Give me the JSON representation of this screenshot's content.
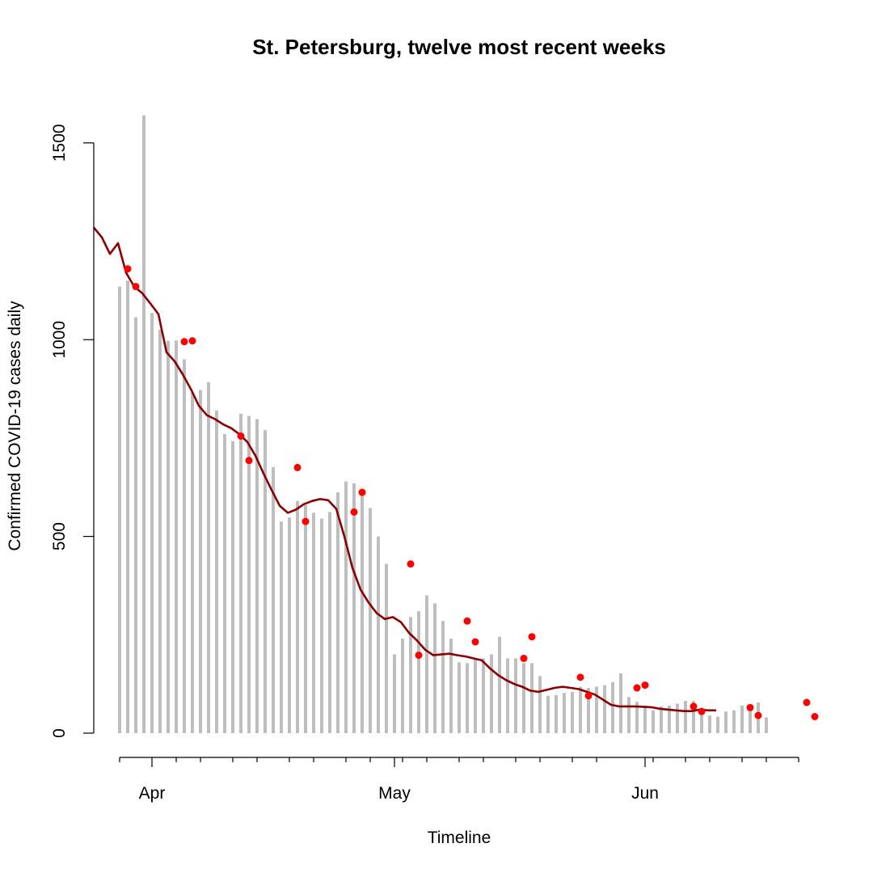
{
  "chart_data": {
    "type": "bar",
    "title": "St. Petersburg, twelve most recent weeks",
    "xlabel": "Timeline",
    "ylabel": "Confirmed COVID-19 cases daily",
    "ylim": [
      0,
      1600
    ],
    "y_ticks": [
      0,
      500,
      1000,
      1500
    ],
    "x_month_ticks": [
      {
        "label": "Apr",
        "day": 4
      },
      {
        "label": "May",
        "day": 34
      },
      {
        "label": "Jun",
        "day": 65
      }
    ],
    "x_minor_tick_days": [
      0,
      7,
      10,
      14,
      17,
      21,
      24,
      28,
      31,
      35,
      38,
      42,
      45,
      49,
      52,
      56,
      59,
      66,
      70,
      73,
      77,
      80,
      84
    ],
    "grid": false,
    "colors": {
      "bars": "#bebebe",
      "trend_line": "#8b0000",
      "points": "#ff0000",
      "axis": "#000000"
    },
    "series": [
      {
        "kind": "bar",
        "values": [
          1135,
          1150,
          1057,
          1570,
          1068,
          1025,
          997,
          998,
          950,
          865,
          872,
          892,
          820,
          760,
          742,
          812,
          806,
          798,
          770,
          676,
          538,
          548,
          590,
          580,
          560,
          545,
          562,
          612,
          640,
          635,
          618,
          572,
          500,
          430,
          200,
          240,
          295,
          310,
          350,
          330,
          285,
          240,
          180,
          178,
          190,
          190,
          200,
          245,
          190,
          190,
          178,
          178,
          145,
          95,
          97,
          102,
          105,
          118,
          115,
          118,
          122,
          130,
          152,
          92,
          80,
          70,
          58,
          68,
          70,
          75,
          82,
          82,
          65,
          45,
          42,
          55,
          58,
          70,
          70,
          78,
          40
        ]
      },
      {
        "kind": "line",
        "values": [
          1285,
          1260,
          1218,
          1245,
          1170,
          1135,
          1118,
          1092,
          1065,
          968,
          945,
          912,
          875,
          832,
          808,
          798,
          785,
          775,
          760,
          740,
          705,
          660,
          618,
          578,
          560,
          568,
          582,
          590,
          595,
          592,
          570,
          500,
          420,
          365,
          332,
          305,
          290,
          295,
          282,
          255,
          235,
          212,
          198,
          200,
          202,
          198,
          195,
          190,
          185,
          165,
          148,
          135,
          125,
          118,
          108,
          105,
          110,
          115,
          118,
          115,
          112,
          105,
          98,
          85,
          72,
          68,
          68,
          68,
          67,
          66,
          62,
          60,
          58,
          56,
          56,
          60,
          58,
          58
        ]
      },
      {
        "kind": "points",
        "points": [
          {
            "day": 2,
            "value": 1180
          },
          {
            "day": 3,
            "value": 1135
          },
          {
            "day": 9,
            "value": 995
          },
          {
            "day": 10,
            "value": 997
          },
          {
            "day": 16,
            "value": 755
          },
          {
            "day": 17,
            "value": 693
          },
          {
            "day": 23,
            "value": 675
          },
          {
            "day": 24,
            "value": 538
          },
          {
            "day": 30,
            "value": 562
          },
          {
            "day": 31,
            "value": 612
          },
          {
            "day": 37,
            "value": 430
          },
          {
            "day": 38,
            "value": 198
          },
          {
            "day": 44,
            "value": 285
          },
          {
            "day": 45,
            "value": 232
          },
          {
            "day": 51,
            "value": 190
          },
          {
            "day": 52,
            "value": 245
          },
          {
            "day": 58,
            "value": 142
          },
          {
            "day": 59,
            "value": 95
          },
          {
            "day": 65,
            "value": 115
          },
          {
            "day": 66,
            "value": 122
          },
          {
            "day": 72,
            "value": 68
          },
          {
            "day": 73,
            "value": 55
          },
          {
            "day": 79,
            "value": 65
          },
          {
            "day": 80,
            "value": 45
          },
          {
            "day": 86,
            "value": 78
          },
          {
            "day": 87,
            "value": 42
          }
        ]
      }
    ]
  }
}
